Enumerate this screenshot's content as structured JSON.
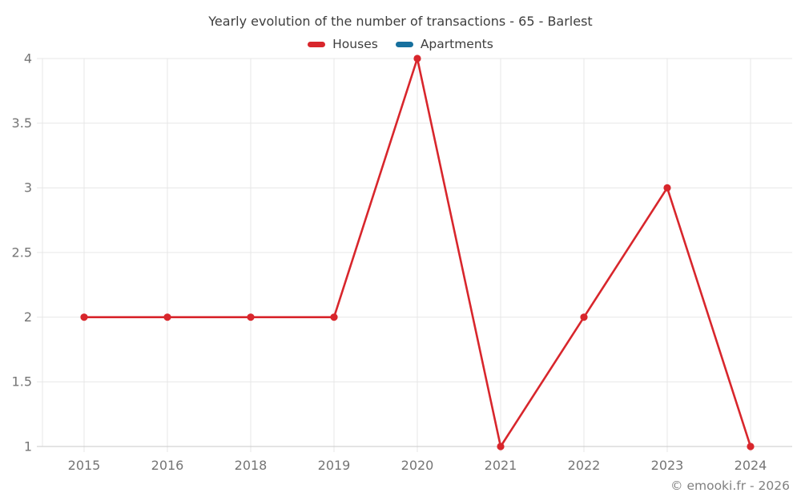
{
  "title": "Yearly evolution of the number of transactions - 65 - Barlest",
  "footer": "© emooki.fr - 2026",
  "legend": [
    {
      "label": "Houses",
      "color": "#d8262c"
    },
    {
      "label": "Apartments",
      "color": "#17709e"
    }
  ],
  "chart_data": {
    "type": "line",
    "categories": [
      "2015",
      "2016",
      "2018",
      "2019",
      "2020",
      "2021",
      "2022",
      "2023",
      "2024"
    ],
    "series": [
      {
        "name": "Houses",
        "color": "#d8262c",
        "values": [
          2,
          2,
          2,
          2,
          4,
          1,
          2,
          3,
          1
        ]
      },
      {
        "name": "Apartments",
        "color": "#17709e",
        "values": []
      }
    ],
    "title": "Yearly evolution of the number of transactions - 65 - Barlest",
    "xlabel": "",
    "ylabel": "",
    "ylim": [
      1,
      4
    ],
    "yticks": [
      1,
      1.5,
      2,
      2.5,
      3,
      3.5,
      4
    ],
    "grid": true,
    "legend_position": "top"
  },
  "colors": {
    "grid": "#e7e7e7",
    "axis": "#c9c9c9",
    "tick_label": "#757575",
    "title_text": "#3e3e3e",
    "footer_text": "#808080",
    "background": "#ffffff"
  }
}
